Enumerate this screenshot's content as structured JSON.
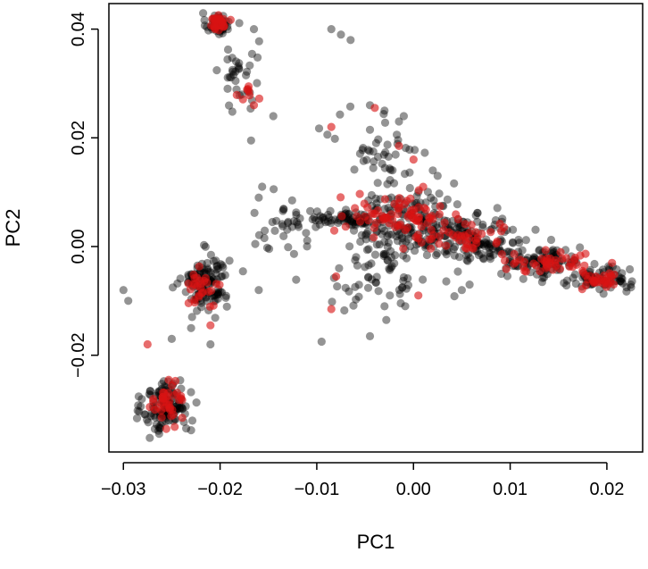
{
  "chart_data": {
    "type": "scatter",
    "xlabel": "PC1",
    "ylabel": "PC2",
    "xlim": [
      -0.0315,
      0.0237
    ],
    "ylim": [
      -0.0378,
      0.0447
    ],
    "xticks": [
      -0.03,
      -0.02,
      -0.01,
      0.0,
      0.01,
      0.02
    ],
    "xtick_labels": [
      "−0.03",
      "−0.02",
      "−0.01",
      "0.00",
      "0.01",
      "0.02"
    ],
    "yticks": [
      -0.02,
      0.0,
      0.02,
      0.04
    ],
    "ytick_labels": [
      "−0.02",
      "0.00",
      "0.02",
      "0.04"
    ],
    "grid": false,
    "legend": "none",
    "series": [
      {
        "color": "#000000",
        "opacity": 0.42,
        "clusters": [
          {
            "cx": -0.0203,
            "cy": 0.041,
            "sx": 0.0006,
            "sy": 0.001,
            "n": 55
          },
          {
            "cx": -0.018,
            "cy": 0.031,
            "sx": 0.001,
            "sy": 0.004,
            "n": 35
          },
          {
            "cx": -0.0215,
            "cy": -0.0065,
            "sx": 0.0012,
            "sy": 0.0025,
            "n": 130
          },
          {
            "cx": -0.0255,
            "cy": -0.0295,
            "sx": 0.0012,
            "sy": 0.0025,
            "n": 130
          },
          {
            "cx": -0.0135,
            "cy": 0.004,
            "sx": 0.002,
            "sy": 0.0025,
            "n": 35
          },
          {
            "cx": -0.007,
            "cy": 0.005,
            "sx": 0.002,
            "sy": 0.0008,
            "n": 60
          },
          {
            "cx": -0.003,
            "cy": 0.018,
            "sx": 0.0025,
            "sy": 0.0035,
            "n": 45
          },
          {
            "cx": -0.004,
            "cy": -0.006,
            "sx": 0.0028,
            "sy": 0.0035,
            "n": 55
          },
          {
            "cx": 0.0,
            "cy": 0.004,
            "sx": 0.003,
            "sy": 0.003,
            "n": 200
          },
          {
            "cx": 0.007,
            "cy": 0.001,
            "sx": 0.0025,
            "sy": 0.002,
            "n": 110
          },
          {
            "cx": 0.0135,
            "cy": -0.003,
            "sx": 0.002,
            "sy": 0.0015,
            "n": 90
          },
          {
            "cx": 0.019,
            "cy": -0.006,
            "sx": 0.0017,
            "sy": 0.001,
            "n": 75
          }
        ],
        "points": [
          [
            -0.03,
            -0.008
          ],
          [
            -0.0295,
            -0.01
          ],
          [
            -0.0085,
            0.04
          ],
          [
            -0.0075,
            0.039
          ],
          [
            -0.0065,
            0.038
          ],
          [
            -0.0165,
            0.04
          ],
          [
            -0.0145,
            0.024
          ],
          [
            -0.0168,
            0.0195
          ],
          [
            -0.0095,
            -0.0175
          ],
          [
            -0.0045,
            -0.0165
          ],
          [
            -0.025,
            -0.017
          ],
          [
            -0.023,
            -0.015
          ],
          [
            -0.021,
            -0.018
          ],
          [
            -0.016,
            -0.008
          ],
          [
            -0.016,
            0.009
          ],
          [
            -0.003,
            0.025
          ],
          [
            -0.001,
            0.024
          ],
          [
            0.0025,
            0.013
          ],
          [
            0.005,
            -0.008
          ],
          [
            0.0058,
            -0.007
          ],
          [
            0.0225,
            -0.0075
          ],
          [
            -0.003,
            -0.011
          ],
          [
            -0.0045,
            0.026
          ],
          [
            -0.0015,
            0.023
          ],
          [
            0.002,
            0.014
          ],
          [
            0.0005,
            0.01
          ]
        ]
      },
      {
        "color": "#d81414",
        "opacity": 0.62,
        "clusters": [
          {
            "cx": -0.0202,
            "cy": 0.041,
            "sx": 0.0005,
            "sy": 0.0008,
            "n": 30
          },
          {
            "cx": -0.0172,
            "cy": 0.028,
            "sx": 0.0006,
            "sy": 0.0015,
            "n": 8
          },
          {
            "cx": -0.0215,
            "cy": -0.007,
            "sx": 0.0008,
            "sy": 0.0015,
            "n": 28
          },
          {
            "cx": -0.0255,
            "cy": -0.029,
            "sx": 0.0008,
            "sy": 0.002,
            "n": 40
          },
          {
            "cx": -0.002,
            "cy": 0.006,
            "sx": 0.0025,
            "sy": 0.0018,
            "n": 70
          },
          {
            "cx": 0.005,
            "cy": 0.002,
            "sx": 0.003,
            "sy": 0.0015,
            "n": 45
          },
          {
            "cx": 0.014,
            "cy": -0.003,
            "sx": 0.0025,
            "sy": 0.001,
            "n": 45
          },
          {
            "cx": 0.0195,
            "cy": -0.0062,
            "sx": 0.0012,
            "sy": 0.0008,
            "n": 30
          }
        ],
        "points": [
          [
            -0.0275,
            -0.018
          ],
          [
            -0.021,
            -0.0145
          ],
          [
            -0.0085,
            -0.0115
          ],
          [
            -0.008,
            -0.0055
          ],
          [
            -0.0085,
            0.022
          ],
          [
            -0.004,
            0.0255
          ],
          [
            -0.0015,
            0.0185
          ],
          [
            0.0,
            0.016
          ],
          [
            0.0005,
            -0.009
          ],
          [
            0.001,
            0.011
          ],
          [
            -0.0165,
            0.026
          ],
          [
            0.006,
            0.004
          ]
        ]
      }
    ]
  }
}
